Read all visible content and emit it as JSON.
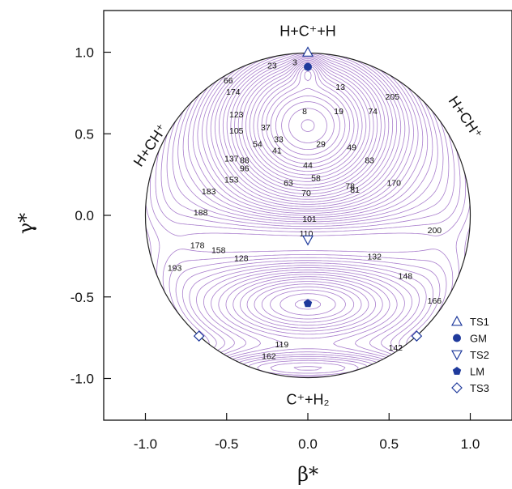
{
  "chart_data": {
    "type": "contour",
    "xlabel": "β*",
    "ylabel": "γ*",
    "xlim": [
      -1.25,
      1.25
    ],
    "ylim": [
      -1.25,
      1.25
    ],
    "x_ticks": [
      "-1.0",
      "-0.5",
      "0.0",
      "0.5",
      "1.0"
    ],
    "x_tick_values": [
      -1.0,
      -0.5,
      0.0,
      0.5,
      1.0
    ],
    "y_ticks": [
      "1.0",
      "0.5",
      "0.0",
      "-0.5",
      "-1.0"
    ],
    "y_tick_values": [
      1.0,
      0.5,
      0.0,
      -0.5,
      -1.0
    ],
    "grid": false,
    "legend_position": "bottom-right",
    "contour_color": "#a070c8",
    "marker_color": "#1f3a9c",
    "region_labels": [
      {
        "id": "top",
        "text": "H+C⁺+H",
        "x": 0.0,
        "y": 1.13
      },
      {
        "id": "left",
        "text": "H+CH⁺",
        "x": -0.97,
        "y": 0.43
      },
      {
        "id": "right",
        "text": "H+CH⁺",
        "x": 0.97,
        "y": 0.6
      },
      {
        "id": "bottom",
        "text": "C⁺+H₂",
        "x": 0.0,
        "y": -1.13
      }
    ],
    "stationary_points": [
      {
        "name": "TS1",
        "marker": "triangle-up",
        "points": [
          [
            0.0,
            1.0
          ]
        ]
      },
      {
        "name": "GM",
        "marker": "circle",
        "points": [
          [
            0.0,
            0.91
          ]
        ]
      },
      {
        "name": "TS2",
        "marker": "triangle-down",
        "points": [
          [
            0.0,
            -0.15
          ]
        ]
      },
      {
        "name": "LM",
        "marker": "pentagon",
        "points": [
          [
            0.0,
            -0.54
          ]
        ]
      },
      {
        "name": "TS3",
        "marker": "diamond",
        "points": [
          [
            -0.67,
            -0.74
          ],
          [
            0.67,
            -0.74
          ]
        ]
      }
    ],
    "contour_labels": [
      {
        "t": "3",
        "x": -0.08,
        "y": 0.94
      },
      {
        "t": "23",
        "x": -0.22,
        "y": 0.92
      },
      {
        "t": "66",
        "x": -0.49,
        "y": 0.83
      },
      {
        "t": "174",
        "x": -0.46,
        "y": 0.76
      },
      {
        "t": "13",
        "x": 0.2,
        "y": 0.79
      },
      {
        "t": "205",
        "x": 0.52,
        "y": 0.73
      },
      {
        "t": "123",
        "x": -0.44,
        "y": 0.62
      },
      {
        "t": "8",
        "x": -0.02,
        "y": 0.64
      },
      {
        "t": "19",
        "x": 0.19,
        "y": 0.64
      },
      {
        "t": "74",
        "x": 0.4,
        "y": 0.64
      },
      {
        "t": "105",
        "x": -0.44,
        "y": 0.52
      },
      {
        "t": "37",
        "x": -0.26,
        "y": 0.54
      },
      {
        "t": "33",
        "x": -0.18,
        "y": 0.47
      },
      {
        "t": "54",
        "x": -0.31,
        "y": 0.44
      },
      {
        "t": "41",
        "x": -0.19,
        "y": 0.4
      },
      {
        "t": "29",
        "x": 0.08,
        "y": 0.44
      },
      {
        "t": "49",
        "x": 0.27,
        "y": 0.42
      },
      {
        "t": "137",
        "x": -0.47,
        "y": 0.35
      },
      {
        "t": "88",
        "x": -0.39,
        "y": 0.34
      },
      {
        "t": "96",
        "x": -0.39,
        "y": 0.29
      },
      {
        "t": "83",
        "x": 0.38,
        "y": 0.34
      },
      {
        "t": "44",
        "x": 0.0,
        "y": 0.31
      },
      {
        "t": "153",
        "x": -0.47,
        "y": 0.22
      },
      {
        "t": "63",
        "x": -0.12,
        "y": 0.2
      },
      {
        "t": "58",
        "x": 0.05,
        "y": 0.23
      },
      {
        "t": "78",
        "x": 0.26,
        "y": 0.18
      },
      {
        "t": "81",
        "x": 0.29,
        "y": 0.16
      },
      {
        "t": "170",
        "x": 0.53,
        "y": 0.2
      },
      {
        "t": "183",
        "x": -0.61,
        "y": 0.15
      },
      {
        "t": "70",
        "x": -0.01,
        "y": 0.14
      },
      {
        "t": "188",
        "x": -0.66,
        "y": 0.02
      },
      {
        "t": "101",
        "x": 0.01,
        "y": -0.02
      },
      {
        "t": "200",
        "x": 0.78,
        "y": -0.09
      },
      {
        "t": "110",
        "x": -0.01,
        "y": -0.11
      },
      {
        "t": "178",
        "x": -0.68,
        "y": -0.18
      },
      {
        "t": "158",
        "x": -0.55,
        "y": -0.21
      },
      {
        "t": "128",
        "x": -0.41,
        "y": -0.26
      },
      {
        "t": "132",
        "x": 0.41,
        "y": -0.25
      },
      {
        "t": "193",
        "x": -0.82,
        "y": -0.32
      },
      {
        "t": "148",
        "x": 0.6,
        "y": -0.37
      },
      {
        "t": "166",
        "x": 0.78,
        "y": -0.52
      },
      {
        "t": "119",
        "x": -0.16,
        "y": -0.79
      },
      {
        "t": "142",
        "x": 0.54,
        "y": -0.81
      },
      {
        "t": "162",
        "x": -0.24,
        "y": -0.86
      }
    ]
  }
}
